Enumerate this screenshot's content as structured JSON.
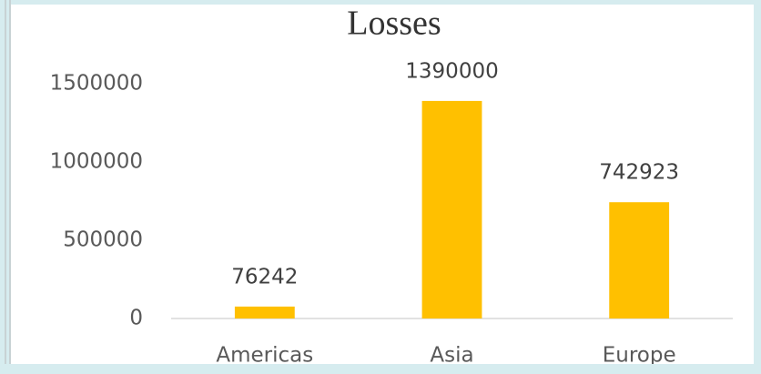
{
  "chart_data": {
    "type": "bar",
    "title": "Losses",
    "categories": [
      "Americas",
      "Asia",
      "Europe"
    ],
    "values": [
      76242,
      1390000,
      742923
    ],
    "color": "#ffc000",
    "ylim": [
      0,
      1500000
    ],
    "yticks": [
      0,
      500000,
      1000000,
      1500000
    ],
    "grid": false
  }
}
